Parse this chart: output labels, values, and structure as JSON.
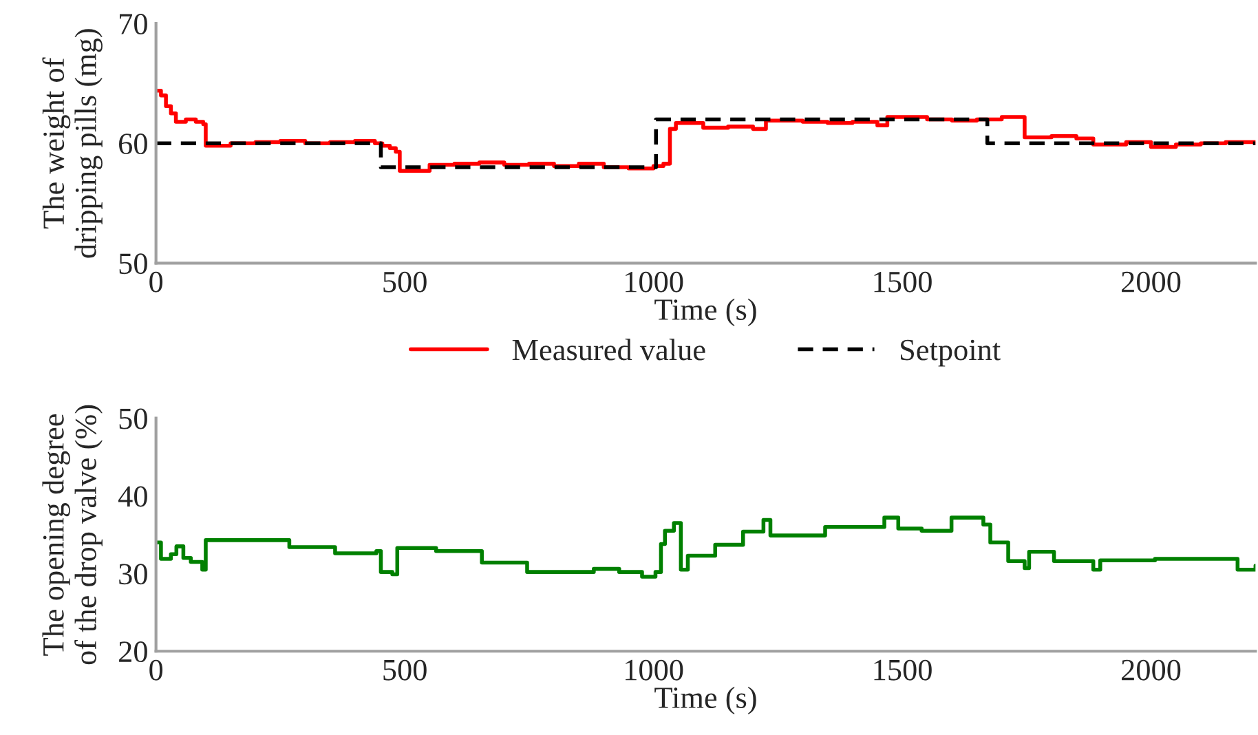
{
  "chart_data": [
    {
      "type": "step",
      "xlabel": "Time (s)",
      "ylabel": "The weight of\ndripping pills (mg)",
      "xlim": [
        0,
        2210
      ],
      "xticks": [
        0,
        500,
        1000,
        1500,
        2000
      ],
      "ylim": [
        50,
        70
      ],
      "yticks": [
        50,
        60,
        70
      ],
      "legend": "bottom",
      "grid": false,
      "series": [
        {
          "name": "Measured value",
          "color": "#ff0000",
          "line_style": "solid",
          "x": [
            0,
            10,
            20,
            30,
            40,
            60,
            80,
            95,
            100,
            150,
            200,
            250,
            300,
            350,
            400,
            440,
            455,
            470,
            482,
            490,
            550,
            600,
            650,
            700,
            750,
            800,
            850,
            900,
            950,
            1000,
            1020,
            1033,
            1045,
            1100,
            1150,
            1200,
            1226,
            1300,
            1350,
            1400,
            1450,
            1470,
            1550,
            1600,
            1650,
            1700,
            1746,
            1800,
            1850,
            1884,
            1950,
            2000,
            2050,
            2100,
            2150,
            2210
          ],
          "values": [
            64.4,
            64.0,
            63.1,
            62.5,
            61.8,
            62.0,
            61.8,
            61.6,
            59.8,
            60.0,
            60.1,
            60.2,
            60.0,
            60.1,
            60.2,
            60.0,
            59.8,
            59.6,
            59.3,
            57.7,
            58.2,
            58.3,
            58.4,
            58.2,
            58.3,
            58.1,
            58.3,
            58.0,
            57.9,
            58.1,
            58.3,
            61.2,
            61.7,
            61.3,
            61.4,
            61.2,
            61.9,
            61.8,
            61.7,
            61.8,
            61.5,
            62.2,
            62.0,
            61.9,
            62.0,
            62.2,
            60.5,
            60.6,
            60.4,
            59.9,
            60.1,
            59.7,
            59.9,
            60.0,
            60.1,
            60.0
          ]
        },
        {
          "name": "Setpoint",
          "color": "#000000",
          "line_style": "dashed",
          "x": [
            0,
            452,
            1005,
            1671,
            2210
          ],
          "values": [
            60,
            58,
            62,
            60,
            60
          ]
        }
      ]
    },
    {
      "type": "step",
      "xlabel": "Time (s)",
      "ylabel": "The opening degree\nof the drop valve (%)",
      "xlim": [
        0,
        2210
      ],
      "xticks": [
        0,
        500,
        1000,
        1500,
        2000
      ],
      "ylim": [
        20,
        50
      ],
      "yticks": [
        20,
        30,
        40,
        50
      ],
      "legend": false,
      "grid": false,
      "series": [
        {
          "color": "#008000",
          "line_style": "solid",
          "x": [
            0,
            10,
            30,
            41,
            55,
            70,
            93,
            100,
            176,
            268,
            360,
            443,
            452,
            475,
            485,
            563,
            655,
            746,
            880,
            931,
            977,
            1004,
            1015,
            1023,
            1041,
            1055,
            1069,
            1124,
            1180,
            1221,
            1235,
            1345,
            1464,
            1492,
            1539,
            1599,
            1663,
            1677,
            1713,
            1746,
            1755,
            1805,
            1884,
            1898,
            2008,
            2109,
            2174,
            2210
          ],
          "values": [
            34.0,
            31.9,
            32.5,
            33.5,
            32.0,
            31.5,
            30.5,
            34.3,
            34.3,
            33.4,
            32.6,
            32.9,
            30.2,
            29.9,
            33.3,
            32.9,
            31.4,
            30.2,
            30.6,
            30.2,
            29.6,
            30.2,
            33.8,
            35.5,
            36.5,
            30.5,
            32.3,
            33.7,
            35.4,
            36.9,
            34.9,
            36.0,
            37.2,
            35.8,
            35.5,
            37.2,
            36.3,
            34.0,
            31.6,
            30.7,
            32.8,
            31.6,
            30.5,
            31.7,
            31.9,
            31.9,
            30.5,
            31.0
          ]
        }
      ]
    }
  ]
}
